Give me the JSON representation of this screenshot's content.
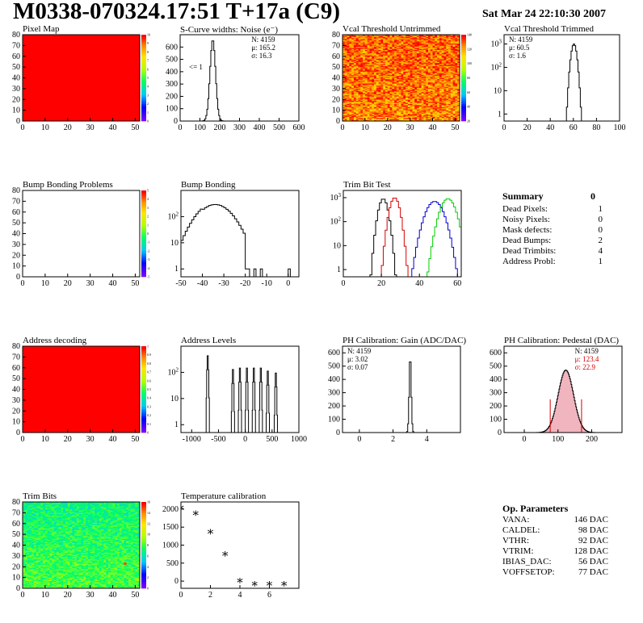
{
  "header": {
    "title": "M0338-070324.17:51 T+17a (C9)",
    "date": "Sat Mar 24 22:10:30 2007"
  },
  "summary": {
    "title": "Summary",
    "total": "0",
    "rows": [
      {
        "label": "Dead Pixels:",
        "value": "1"
      },
      {
        "label": "Noisy Pixels:",
        "value": "0"
      },
      {
        "label": "Mask defects:",
        "value": "0"
      },
      {
        "label": "Dead Bumps:",
        "value": "2"
      },
      {
        "label": "Dead Trimbits:",
        "value": "4"
      },
      {
        "label": "Address Probl:",
        "value": "1"
      }
    ]
  },
  "op_params": {
    "title": "Op. Parameters",
    "rows": [
      {
        "label": "VANA:",
        "value": "146 DAC"
      },
      {
        "label": "CALDEL:",
        "value": "98 DAC"
      },
      {
        "label": "VTHR:",
        "value": "92 DAC"
      },
      {
        "label": "VTRIM:",
        "value": "128 DAC"
      },
      {
        "label": "IBIAS_DAC:",
        "value": "56 DAC"
      },
      {
        "label": "VOFFSETOP:",
        "value": "77 DAC"
      }
    ]
  },
  "chart_data": [
    {
      "id": "pixel-map",
      "type": "heatmap",
      "title": "Pixel Map",
      "xlim": [
        0,
        52
      ],
      "ylim": [
        0,
        80
      ],
      "xticks": [
        0,
        10,
        20,
        30,
        40,
        50
      ],
      "yticks": [
        0,
        10,
        20,
        30,
        40,
        50,
        60,
        70,
        80
      ],
      "palette_ticks": [
        "0",
        "1",
        "2",
        "3",
        "4",
        "5",
        "6",
        "7",
        "8",
        "9",
        "10"
      ],
      "fill": "uniform",
      "value": 10
    },
    {
      "id": "scurve",
      "type": "bar",
      "title": "S-Curve widths: Noise (e⁻)",
      "xlim": [
        0,
        600
      ],
      "ylim": [
        0,
        700
      ],
      "xticks": [
        0,
        100,
        200,
        300,
        400,
        500,
        600
      ],
      "yticks": [
        0,
        100,
        200,
        300,
        400,
        500,
        600
      ],
      "stats": [
        "N: 4159",
        "μ: 165.2",
        "σ: 16.3"
      ],
      "annotation": "<= 1",
      "gauss": {
        "amp": 660,
        "mean": 165,
        "sigma": 14
      },
      "bin": 5
    },
    {
      "id": "vcal-untrimmed",
      "type": "heatmap",
      "title": "Vcal Threshold Untrimmed",
      "xlim": [
        0,
        52
      ],
      "ylim": [
        0,
        80
      ],
      "xticks": [
        0,
        10,
        20,
        30,
        40,
        50
      ],
      "yticks": [
        0,
        10,
        20,
        30,
        40,
        50,
        60,
        70,
        80
      ],
      "palette_ticks": [
        "20",
        "40",
        "60",
        "80",
        "100",
        "120",
        "140"
      ],
      "fill": "noise-hot"
    },
    {
      "id": "vcal-trimmed",
      "type": "bar",
      "title": "Vcal Threshold Trimmed",
      "log": true,
      "xlim": [
        0,
        100
      ],
      "ylim": [
        0.5,
        2500
      ],
      "xticks": [
        0,
        20,
        40,
        60,
        80,
        100
      ],
      "yticks": [
        1,
        10,
        100,
        1000
      ],
      "stats": [
        "N: 4159",
        "μ: 60.5",
        "σ: 1.6"
      ],
      "gauss": {
        "amp": 1000,
        "mean": 60.5,
        "sigma": 1.7
      },
      "bin": 1
    },
    {
      "id": "bump-map",
      "type": "heatmap",
      "title": "Bump Bonding Problems",
      "xlim": [
        0,
        52
      ],
      "ylim": [
        0,
        80
      ],
      "xticks": [
        0,
        10,
        20,
        30,
        40,
        50
      ],
      "yticks": [
        0,
        10,
        20,
        30,
        40,
        50,
        60,
        70,
        80
      ],
      "palette_ticks": [
        "-5",
        "-4",
        "-3",
        "-2",
        "-1",
        "0",
        "1",
        "2",
        "3",
        "4",
        "5"
      ],
      "fill": "empty"
    },
    {
      "id": "bump-bonding",
      "type": "bar",
      "title": "Bump Bonding",
      "log": true,
      "xlim": [
        -50,
        5
      ],
      "ylim": [
        0.5,
        1000
      ],
      "xticks": [
        -50,
        -40,
        -30,
        -20,
        -10,
        0
      ],
      "yticks": [
        1,
        10,
        100
      ],
      "gauss": {
        "amp": 290,
        "mean": -34,
        "sigma": 6
      },
      "bin": 1,
      "outliers": [
        [
          -16,
          1
        ],
        [
          -13,
          1
        ],
        [
          0,
          1
        ]
      ]
    },
    {
      "id": "trim-bit-test",
      "type": "line",
      "title": "Trim Bit Test",
      "log": true,
      "xlim": [
        0,
        62
      ],
      "ylim": [
        0.5,
        2000
      ],
      "xticks": [
        0,
        20,
        40,
        60
      ],
      "yticks": [
        1,
        10,
        100,
        1000
      ],
      "bin": 1,
      "series": [
        {
          "color": "#000000",
          "mean": 21,
          "sigma": 1.7,
          "amp": 900
        },
        {
          "color": "#d40000",
          "mean": 27,
          "sigma": 1.8,
          "amp": 1000
        },
        {
          "color": "#0000cc",
          "mean": 48,
          "sigma": 3.2,
          "amp": 700
        },
        {
          "color": "#00cc00",
          "mean": 55,
          "sigma": 2.8,
          "amp": 900
        }
      ]
    },
    {
      "id": "address-map",
      "type": "heatmap",
      "title": "Address decoding",
      "xlim": [
        0,
        52
      ],
      "ylim": [
        0,
        80
      ],
      "xticks": [
        0,
        10,
        20,
        30,
        40,
        50
      ],
      "yticks": [
        0,
        10,
        20,
        30,
        40,
        50,
        60,
        70,
        80
      ],
      "palette_ticks": [
        "0",
        "0.1",
        "0.2",
        "0.3",
        "0.4",
        "0.5",
        "0.6",
        "0.7",
        "0.8",
        "0.9",
        "1"
      ],
      "fill": "uniform",
      "value": 1
    },
    {
      "id": "address-levels",
      "type": "bar",
      "title": "Address Levels",
      "log": true,
      "xlim": [
        -1200,
        1000
      ],
      "ylim": [
        0.5,
        1000
      ],
      "xticks": [
        -1000,
        -500,
        0,
        500,
        1000
      ],
      "yticks": [
        1,
        10,
        100
      ],
      "bin": 10,
      "peaks": [
        [
          -700,
          500
        ],
        [
          -230,
          150
        ],
        [
          -100,
          170
        ],
        [
          30,
          170
        ],
        [
          160,
          170
        ],
        [
          290,
          170
        ],
        [
          420,
          130
        ],
        [
          570,
          110
        ]
      ]
    },
    {
      "id": "ph-gain",
      "type": "bar",
      "title": "PH Calibration: Gain (ADC/DAC)",
      "xlim": [
        -1,
        6
      ],
      "ylim": [
        0,
        650
      ],
      "xticks": [
        0,
        2,
        4
      ],
      "yticks": [
        0,
        100,
        200,
        300,
        400,
        500,
        600
      ],
      "stats": [
        "N: 4159",
        "μ: 3.02",
        "σ: 0.07"
      ],
      "gauss": {
        "amp": 580,
        "mean": 3.02,
        "sigma": 0.06
      },
      "bin": 0.05
    },
    {
      "id": "ph-pedestal",
      "type": "bar",
      "title": "PH Calibration: Pedestal (DAC)",
      "xlim": [
        -60,
        290
      ],
      "ylim": [
        0,
        650
      ],
      "xticks": [
        0,
        100,
        200
      ],
      "yticks": [
        0,
        100,
        200,
        300,
        400,
        500,
        600
      ],
      "stats": [
        "N: 4159",
        "μ: 123.4",
        "σ: 22.9"
      ],
      "gauss": {
        "amp": 470,
        "mean": 123.4,
        "sigma": 22.9
      },
      "bin": 2,
      "markers": [
        77,
        170
      ]
    },
    {
      "id": "trim-bits",
      "type": "heatmap",
      "title": "Trim Bits",
      "xlim": [
        0,
        52
      ],
      "ylim": [
        0,
        80
      ],
      "xticks": [
        0,
        10,
        20,
        30,
        40,
        50
      ],
      "yticks": [
        0,
        10,
        20,
        30,
        40,
        50,
        60,
        70,
        80
      ],
      "palette_ticks": [
        "0",
        "2",
        "4",
        "6",
        "8",
        "10",
        "12",
        "14",
        "16"
      ],
      "fill": "noise-green"
    },
    {
      "id": "temperature",
      "type": "scatter",
      "title": "Temperature calibration",
      "xlim": [
        0,
        8
      ],
      "ylim": [
        -200,
        2200
      ],
      "xticks": [
        0,
        2,
        4,
        6
      ],
      "yticks": [
        0,
        500,
        1000,
        1500,
        2000
      ],
      "x": [
        0,
        1,
        2,
        3,
        4,
        5,
        6,
        7
      ],
      "y": [
        2050,
        1900,
        1380,
        760,
        20,
        -70,
        -70,
        -70
      ]
    }
  ]
}
